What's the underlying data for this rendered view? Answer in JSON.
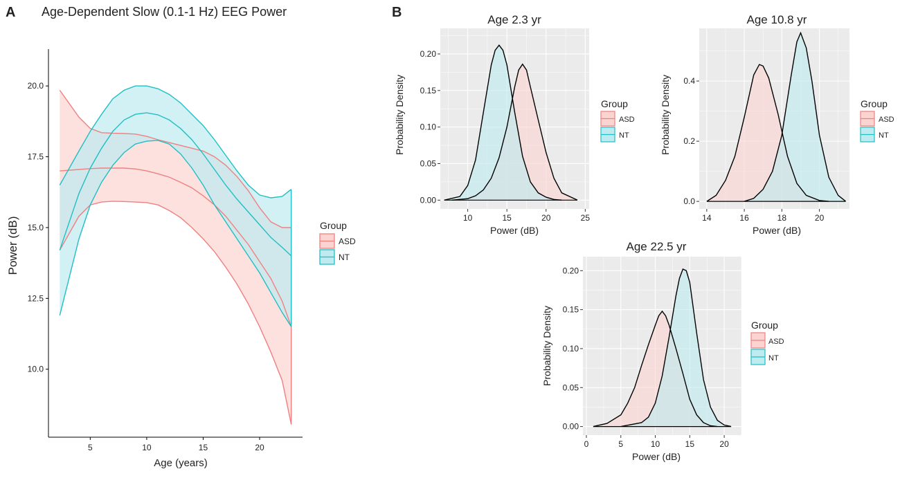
{
  "panels": {
    "a_letter": "A",
    "b_letter": "B"
  },
  "colors": {
    "asd": "#f08080",
    "nt": "#1fbfc4",
    "asd_fill": "#fbd4d1",
    "nt_fill": "#bdebef",
    "overlap_fill": "#c9cfca",
    "panel_bg": "#ebebeb",
    "grid": "#ffffff",
    "density_line": "#000000"
  },
  "chart_data": [
    {
      "type": "area",
      "title": "Age-Dependent Slow (0.1-1 Hz) EEG Power",
      "xlabel": "Age (years)",
      "ylabel": "Power (dB)",
      "xlim": [
        1.3,
        23.8
      ],
      "ylim": [
        7.6,
        21.3
      ],
      "xticks": [
        5,
        10,
        15,
        20
      ],
      "yticks": [
        10.0,
        12.5,
        15.0,
        17.5,
        20.0
      ],
      "ytick_labels": [
        "10.0",
        "12.5",
        "15.0",
        "17.5",
        "20.0"
      ],
      "legend": {
        "title": "Group",
        "entries": [
          "ASD",
          "NT"
        ],
        "placement": "right"
      },
      "x": [
        2.3,
        4,
        5,
        6,
        7,
        8,
        9,
        10,
        11,
        12,
        13,
        14,
        15,
        16,
        17,
        18,
        19,
        20,
        21,
        22,
        22.8
      ],
      "series": [
        {
          "name": "ASD",
          "mean": [
            17.0,
            17.05,
            17.08,
            17.1,
            17.1,
            17.1,
            17.07,
            17.0,
            16.9,
            16.78,
            16.6,
            16.4,
            16.12,
            15.8,
            15.4,
            14.9,
            14.4,
            13.8,
            13.2,
            12.4,
            11.5
          ],
          "upper": [
            19.85,
            18.9,
            18.5,
            18.35,
            18.33,
            18.32,
            18.3,
            18.22,
            18.1,
            18.0,
            17.9,
            17.8,
            17.7,
            17.5,
            17.2,
            16.8,
            16.3,
            15.7,
            15.2,
            15.0,
            15.0
          ],
          "lower": [
            14.2,
            15.4,
            15.8,
            15.9,
            15.93,
            15.92,
            15.9,
            15.88,
            15.8,
            15.6,
            15.35,
            15.0,
            14.6,
            14.15,
            13.6,
            13.0,
            12.3,
            11.5,
            10.6,
            9.6,
            8.05
          ]
        },
        {
          "name": "NT",
          "mean": [
            14.2,
            16.2,
            17.1,
            17.8,
            18.4,
            18.8,
            19.0,
            19.05,
            18.98,
            18.8,
            18.5,
            18.1,
            17.6,
            17.05,
            16.5,
            16.0,
            15.55,
            15.1,
            14.65,
            14.3,
            14.0
          ],
          "upper": [
            16.5,
            17.7,
            18.4,
            19.0,
            19.55,
            19.85,
            20.0,
            20.0,
            19.9,
            19.7,
            19.4,
            19.0,
            18.6,
            18.1,
            17.55,
            17.0,
            16.5,
            16.15,
            16.05,
            16.1,
            16.35
          ],
          "lower": [
            11.9,
            14.6,
            15.8,
            16.6,
            17.2,
            17.65,
            17.95,
            18.05,
            18.08,
            17.95,
            17.6,
            17.1,
            16.5,
            15.8,
            15.2,
            14.6,
            14.0,
            13.4,
            12.7,
            12.0,
            11.5
          ]
        }
      ]
    },
    {
      "type": "area",
      "title": "Age 2.3 yr",
      "xlabel": "Power (dB)",
      "ylabel": "Probability Density",
      "xlim": [
        6.5,
        25.5
      ],
      "ylim": [
        -0.012,
        0.235
      ],
      "xticks": [
        10,
        15,
        20,
        25
      ],
      "yticks": [
        0.0,
        0.05,
        0.1,
        0.15,
        0.2
      ],
      "ytick_labels": [
        "0.00",
        "0.05",
        "0.10",
        "0.15",
        "0.20"
      ],
      "legend": {
        "title": "Group",
        "entries": [
          "ASD",
          "NT"
        ],
        "placement": "right"
      },
      "series": [
        {
          "name": "ASD",
          "x": [
            8,
            10,
            11,
            12,
            13,
            14,
            15,
            16,
            16.5,
            17,
            17.5,
            18,
            19,
            20,
            21,
            22,
            24
          ],
          "y": [
            0.0,
            0.002,
            0.006,
            0.014,
            0.03,
            0.058,
            0.1,
            0.155,
            0.178,
            0.186,
            0.178,
            0.155,
            0.11,
            0.065,
            0.03,
            0.01,
            0.0
          ]
        },
        {
          "name": "NT",
          "x": [
            7,
            9,
            10,
            11,
            12,
            13,
            13.5,
            14,
            14.5,
            15,
            16,
            17,
            18,
            19,
            20,
            21,
            22
          ],
          "y": [
            0.0,
            0.005,
            0.02,
            0.055,
            0.12,
            0.185,
            0.205,
            0.212,
            0.205,
            0.185,
            0.12,
            0.06,
            0.025,
            0.01,
            0.004,
            0.001,
            0.0
          ]
        }
      ]
    },
    {
      "type": "area",
      "title": "Age 10.8 yr",
      "xlabel": "Power (dB)",
      "ylabel": "Probability Density",
      "xlim": [
        13.6,
        21.6
      ],
      "ylim": [
        -0.025,
        0.575
      ],
      "xticks": [
        14,
        16,
        18,
        20
      ],
      "yticks": [
        0.0,
        0.2,
        0.4
      ],
      "ytick_labels": [
        "0.0",
        "0.2",
        "0.4"
      ],
      "legend": {
        "title": "Group",
        "entries": [
          "ASD",
          "NT"
        ],
        "placement": "right"
      },
      "series": [
        {
          "name": "ASD",
          "x": [
            14,
            14.5,
            15,
            15.5,
            16,
            16.5,
            16.8,
            17,
            17.3,
            17.8,
            18.3,
            18.8,
            19.3,
            20,
            20.5
          ],
          "y": [
            0.0,
            0.02,
            0.07,
            0.15,
            0.28,
            0.42,
            0.455,
            0.45,
            0.41,
            0.29,
            0.15,
            0.06,
            0.02,
            0.003,
            0.0
          ]
        },
        {
          "name": "NT",
          "x": [
            16,
            16.5,
            17,
            17.5,
            18,
            18.5,
            18.8,
            19,
            19.3,
            19.6,
            20,
            20.5,
            21,
            21.4
          ],
          "y": [
            0.0,
            0.01,
            0.04,
            0.1,
            0.22,
            0.42,
            0.53,
            0.56,
            0.51,
            0.4,
            0.22,
            0.08,
            0.02,
            0.0
          ]
        }
      ]
    },
    {
      "type": "area",
      "title": "Age 22.5 yr",
      "xlabel": "Power (dB)",
      "ylabel": "Probability Density",
      "xlim": [
        -0.5,
        22.5
      ],
      "ylim": [
        -0.011,
        0.218
      ],
      "xticks": [
        0,
        5,
        10,
        15,
        20
      ],
      "yticks": [
        0.0,
        0.05,
        0.1,
        0.15,
        0.2
      ],
      "ytick_labels": [
        "0.00",
        "0.05",
        "0.10",
        "0.15",
        "0.20"
      ],
      "legend": {
        "title": "Group",
        "entries": [
          "ASD",
          "NT"
        ],
        "placement": "right"
      },
      "series": [
        {
          "name": "ASD",
          "x": [
            1,
            3,
            5,
            6,
            7,
            8,
            9,
            10,
            10.5,
            11,
            11.5,
            12,
            13,
            14,
            15,
            16,
            17,
            18,
            19
          ],
          "y": [
            0.0,
            0.004,
            0.015,
            0.03,
            0.05,
            0.078,
            0.105,
            0.13,
            0.142,
            0.148,
            0.142,
            0.13,
            0.1,
            0.068,
            0.035,
            0.015,
            0.005,
            0.001,
            0.0
          ]
        },
        {
          "name": "NT",
          "x": [
            5,
            8,
            9,
            10,
            11,
            12,
            13,
            13.5,
            14,
            14.5,
            15,
            16,
            17,
            18,
            19,
            20,
            21
          ],
          "y": [
            0.0,
            0.005,
            0.012,
            0.03,
            0.065,
            0.115,
            0.168,
            0.19,
            0.202,
            0.2,
            0.185,
            0.12,
            0.06,
            0.025,
            0.008,
            0.002,
            0.0
          ]
        }
      ]
    }
  ]
}
